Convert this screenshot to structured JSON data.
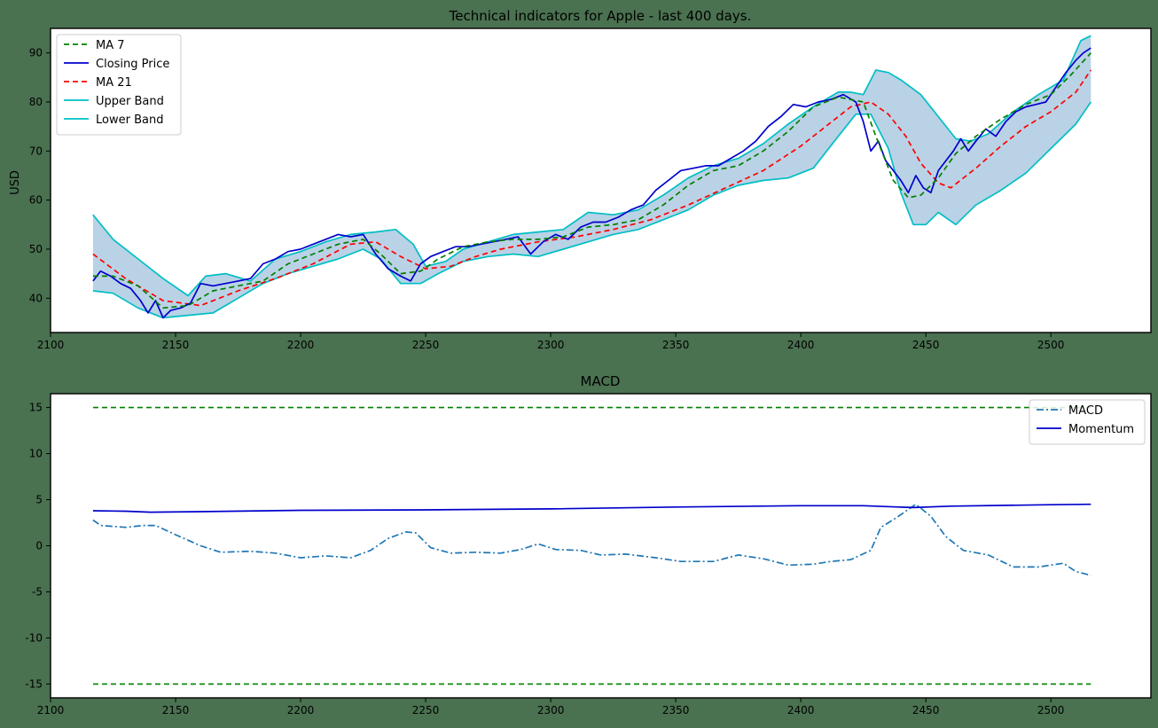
{
  "figure_background": "#4a7150",
  "chart_data": [
    {
      "type": "line",
      "title": "Technical indicators for Apple - last 400 days.",
      "xlabel": "",
      "ylabel": "USD",
      "xlim": [
        2100,
        2540
      ],
      "ylim": [
        33,
        95
      ],
      "xticks": [
        2100,
        2150,
        2200,
        2250,
        2300,
        2350,
        2400,
        2450,
        2500
      ],
      "yticks": [
        40,
        50,
        60,
        70,
        80,
        90
      ],
      "grid": false,
      "legend_position": "upper-left",
      "band_fill_color": "#b3cde3",
      "series": [
        {
          "name": "MA 7",
          "color": "#008000",
          "style": "dashed",
          "x": [
            2117,
            2125,
            2135,
            2145,
            2155,
            2165,
            2175,
            2185,
            2195,
            2205,
            2215,
            2225,
            2232,
            2240,
            2248,
            2255,
            2265,
            2275,
            2285,
            2295,
            2305,
            2315,
            2325,
            2335,
            2345,
            2355,
            2365,
            2375,
            2385,
            2395,
            2405,
            2415,
            2425,
            2430,
            2437,
            2443,
            2448,
            2455,
            2462,
            2470,
            2480,
            2490,
            2500,
            2508,
            2516
          ],
          "y": [
            44.5,
            44.5,
            42.5,
            38,
            38.5,
            41.5,
            42.5,
            43.5,
            47,
            49,
            51,
            52,
            49,
            45,
            45.5,
            48,
            50.5,
            51.5,
            52,
            52,
            52.5,
            54.5,
            55,
            56,
            59,
            63,
            66,
            67,
            70,
            74,
            79,
            81,
            80,
            73,
            64,
            60.5,
            61,
            64.5,
            69.5,
            73,
            76.5,
            79.5,
            81.5,
            85.5,
            90
          ]
        },
        {
          "name": "Closing Price",
          "color": "#0000cc",
          "style": "solid",
          "x": [
            2117,
            2120,
            2124,
            2128,
            2132,
            2136,
            2139,
            2142,
            2145,
            2148,
            2152,
            2156,
            2160,
            2165,
            2170,
            2175,
            2180,
            2185,
            2190,
            2195,
            2200,
            2205,
            2210,
            2215,
            2220,
            2225,
            2230,
            2235,
            2240,
            2244,
            2248,
            2252,
            2257,
            2262,
            2267,
            2272,
            2277,
            2282,
            2287,
            2292,
            2297,
            2302,
            2307,
            2312,
            2317,
            2322,
            2327,
            2332,
            2337,
            2342,
            2347,
            2352,
            2357,
            2362,
            2367,
            2372,
            2377,
            2382,
            2387,
            2392,
            2397,
            2402,
            2407,
            2412,
            2417,
            2422,
            2425,
            2428,
            2431,
            2434,
            2437,
            2440,
            2443,
            2446,
            2449,
            2452,
            2455,
            2458,
            2461,
            2464,
            2467,
            2470,
            2474,
            2478,
            2482,
            2486,
            2490,
            2494,
            2498,
            2502,
            2506,
            2510,
            2513,
            2516
          ],
          "y": [
            43.5,
            45.5,
            44.5,
            43,
            42,
            39.5,
            37,
            39.5,
            36,
            37.5,
            38,
            39,
            43,
            42.5,
            43,
            43.5,
            44,
            47,
            48,
            49.5,
            50,
            51,
            52,
            53,
            52.5,
            53,
            49,
            46,
            44.5,
            43.5,
            47,
            48.5,
            49.5,
            50.5,
            50.5,
            51,
            51.5,
            52,
            52.5,
            49,
            51.5,
            53,
            52,
            54.5,
            55.5,
            55.5,
            56.5,
            58,
            59,
            62,
            64,
            66,
            66.5,
            67,
            67,
            68.5,
            70,
            72,
            75,
            77,
            79.5,
            79,
            80,
            80.5,
            81.5,
            80,
            76,
            70,
            72,
            68,
            66,
            64,
            61.5,
            65,
            62.5,
            61.5,
            66,
            68,
            70,
            72.5,
            70,
            72,
            74.5,
            73,
            76,
            78,
            79,
            79.5,
            80,
            83,
            86,
            88.5,
            90,
            91
          ]
        },
        {
          "name": "MA 21",
          "color": "#ff0000",
          "style": "dashed",
          "x": [
            2117,
            2130,
            2145,
            2160,
            2175,
            2190,
            2205,
            2220,
            2230,
            2240,
            2250,
            2260,
            2270,
            2280,
            2295,
            2310,
            2325,
            2340,
            2355,
            2370,
            2385,
            2400,
            2410,
            2420,
            2428,
            2435,
            2442,
            2448,
            2455,
            2460,
            2470,
            2480,
            2490,
            2500,
            2510,
            2516
          ],
          "y": [
            49,
            44,
            39.5,
            38.5,
            41.5,
            44,
            47,
            51,
            51.5,
            48.5,
            46,
            46.5,
            48.5,
            50,
            51.5,
            52.5,
            54,
            56,
            59,
            62.5,
            66,
            71,
            75,
            79,
            80,
            77.5,
            73,
            67.5,
            63.5,
            62.5,
            66.5,
            71,
            75,
            78,
            82,
            86.5
          ]
        },
        {
          "name": "Upper Band",
          "color": "#00bfc4",
          "style": "solid",
          "x": [
            2117,
            2125,
            2135,
            2145,
            2155,
            2162,
            2170,
            2180,
            2190,
            2200,
            2210,
            2220,
            2230,
            2238,
            2245,
            2250,
            2258,
            2265,
            2275,
            2285,
            2295,
            2305,
            2315,
            2325,
            2335,
            2345,
            2355,
            2365,
            2375,
            2385,
            2395,
            2405,
            2415,
            2420,
            2425,
            2430,
            2435,
            2440,
            2448,
            2455,
            2462,
            2468,
            2475,
            2485,
            2495,
            2505,
            2512,
            2516
          ],
          "y": [
            57,
            52,
            48,
            44,
            40.5,
            44.5,
            45,
            43.5,
            48,
            49.5,
            51.5,
            53,
            53.5,
            54,
            51,
            46.5,
            47.5,
            50,
            51.5,
            53,
            53.5,
            54,
            57.5,
            57,
            58,
            61,
            64.5,
            67,
            68.5,
            71.5,
            75.5,
            79,
            82,
            82,
            81.5,
            86.5,
            86,
            84.5,
            81.5,
            77,
            72.5,
            72,
            73.5,
            78,
            81.5,
            84.5,
            92.5,
            93.5
          ]
        },
        {
          "name": "Lower Band",
          "color": "#00bfc4",
          "style": "solid",
          "x": [
            2117,
            2125,
            2135,
            2145,
            2155,
            2165,
            2175,
            2185,
            2195,
            2205,
            2215,
            2225,
            2232,
            2240,
            2248,
            2255,
            2265,
            2275,
            2285,
            2295,
            2305,
            2315,
            2325,
            2335,
            2345,
            2355,
            2365,
            2375,
            2385,
            2395,
            2405,
            2415,
            2422,
            2428,
            2435,
            2440,
            2445,
            2450,
            2455,
            2462,
            2470,
            2480,
            2490,
            2500,
            2510,
            2516
          ],
          "y": [
            41.5,
            41,
            38,
            36,
            36.5,
            37,
            40,
            43,
            45,
            46.5,
            48,
            50,
            48,
            43,
            43,
            45,
            47.5,
            48.5,
            49,
            48.5,
            50,
            51.5,
            53,
            54,
            56,
            58,
            61,
            63,
            64,
            64.5,
            66.5,
            73,
            77.5,
            77.5,
            70.5,
            61.5,
            55,
            55,
            57.5,
            55,
            59,
            62,
            65.5,
            70.5,
            75.5,
            80
          ]
        }
      ]
    },
    {
      "type": "line",
      "title": "MACD",
      "xlabel": "",
      "ylabel": "",
      "xlim": [
        2100,
        2540
      ],
      "ylim": [
        -16.5,
        16.5
      ],
      "xticks": [
        2100,
        2150,
        2200,
        2250,
        2300,
        2350,
        2400,
        2450,
        2500
      ],
      "yticks": [
        -15,
        -10,
        -5,
        0,
        5,
        10,
        15
      ],
      "grid": false,
      "legend_position": "upper-right",
      "hlines": [
        {
          "y": 15,
          "color": "#008000",
          "style": "dashed"
        },
        {
          "y": -15,
          "color": "#008000",
          "style": "dashed"
        }
      ],
      "series": [
        {
          "name": "MACD",
          "color": "#1f77b4",
          "style": "dashdot",
          "x": [
            2117,
            2120,
            2130,
            2137,
            2142,
            2150,
            2160,
            2168,
            2180,
            2190,
            2200,
            2210,
            2220,
            2228,
            2235,
            2242,
            2246,
            2252,
            2260,
            2270,
            2280,
            2288,
            2295,
            2302,
            2312,
            2320,
            2330,
            2342,
            2352,
            2365,
            2375,
            2385,
            2395,
            2405,
            2412,
            2420,
            2428,
            2432,
            2438,
            2446,
            2452,
            2458,
            2465,
            2475,
            2485,
            2495,
            2505,
            2510,
            2516
          ],
          "y": [
            2.8,
            2.2,
            2,
            2.2,
            2.2,
            1.2,
            0,
            -0.7,
            -0.6,
            -0.8,
            -1.3,
            -1.1,
            -1.3,
            -0.5,
            0.8,
            1.5,
            1.4,
            -0.2,
            -0.8,
            -0.7,
            -0.8,
            -0.4,
            0.2,
            -0.4,
            -0.5,
            -1,
            -0.9,
            -1.3,
            -1.7,
            -1.7,
            -1,
            -1.4,
            -2.1,
            -2,
            -1.7,
            -1.5,
            -0.5,
            2,
            3,
            4.5,
            3.2,
            1,
            -0.5,
            -1,
            -2.3,
            -2.3,
            -1.9,
            -2.8,
            -3.2
          ]
        },
        {
          "name": "Momentum",
          "color": "#0000cc",
          "style": "solid",
          "x": [
            2117,
            2130,
            2140,
            2160,
            2200,
            2250,
            2300,
            2350,
            2400,
            2425,
            2445,
            2460,
            2500,
            2516
          ],
          "y": [
            3.8,
            3.75,
            3.65,
            3.7,
            3.85,
            3.9,
            4,
            4.2,
            4.35,
            4.35,
            4.15,
            4.3,
            4.45,
            4.5
          ]
        }
      ]
    }
  ]
}
